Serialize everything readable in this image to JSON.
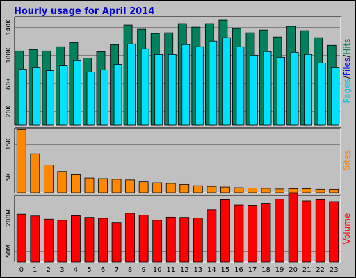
{
  "chart_data": {
    "type": "bar",
    "title": "Hourly usage for April 2014",
    "categories": [
      "0",
      "1",
      "2",
      "3",
      "4",
      "5",
      "6",
      "7",
      "8",
      "9",
      "10",
      "11",
      "12",
      "13",
      "14",
      "15",
      "16",
      "17",
      "18",
      "19",
      "20",
      "21",
      "22",
      "23"
    ],
    "panels": [
      {
        "id": "top",
        "ylabel_parts": [
          "Pages",
          "Files",
          "Hits"
        ],
        "ylabel_colors": [
          "#00c8e8",
          "#0000ff",
          "#008060"
        ],
        "ylim": [
          0,
          155000
        ],
        "yticks": [
          20000,
          60000,
          100000,
          140000
        ],
        "ytick_labels": [
          "20K",
          "60K",
          "100K",
          "140K"
        ],
        "series": [
          {
            "name": "Hits",
            "color": "#00805c",
            "values": [
              106000,
              108000,
              106000,
              112000,
              118000,
              96000,
              105000,
              115000,
              143000,
              137000,
              131000,
              132000,
              145000,
              140000,
              145000,
              150000,
              138000,
              132000,
              136000,
              126000,
              141000,
              135000,
              125000,
              114000
            ]
          },
          {
            "name": "Files",
            "color": "#0000ff",
            "values": [
              4000,
              4000,
              4000,
              4000,
              4000,
              4000,
              4000,
              4000,
              4000,
              4000,
              4000,
              4000,
              4000,
              4000,
              4000,
              4000,
              4000,
              4000,
              4000,
              4000,
              4000,
              4000,
              4000,
              4000
            ]
          },
          {
            "name": "Pages",
            "color": "#00e0ff",
            "values": [
              80000,
              82000,
              78000,
              85000,
              92000,
              76000,
              79000,
              87000,
              116000,
              109000,
              101000,
              101000,
              115000,
              112000,
              120000,
              125000,
              112000,
              100000,
              105000,
              97000,
              104000,
              101000,
              89000,
              82000
            ]
          }
        ]
      },
      {
        "id": "middle",
        "ylabel_parts": [
          "Sites"
        ],
        "ylabel_colors": [
          "#ff8000"
        ],
        "ylim": [
          0,
          20000
        ],
        "yticks": [
          5000,
          15000
        ],
        "ytick_labels": [
          "5K",
          "15K"
        ],
        "series": [
          {
            "name": "Sites",
            "color": "#ff8800",
            "values": [
              19500,
              12000,
              8500,
              6500,
              5500,
              4500,
              4300,
              4100,
              3900,
              3300,
              3000,
              2800,
              2500,
              2100,
              1900,
              1700,
              1500,
              1400,
              1300,
              1100,
              1200,
              1200,
              1000,
              1000
            ]
          }
        ]
      },
      {
        "id": "bottom",
        "ylabel_parts": [
          "Volume"
        ],
        "ylabel_colors": [
          "#ff0000"
        ],
        "ylim": [
          0,
          300
        ],
        "yticks": [
          50,
          200
        ],
        "ytick_labels": [
          "50M",
          "200M"
        ],
        "series": [
          {
            "name": "Volume",
            "color": "#ff0000",
            "values": [
              215,
              207,
              193,
              188,
              208,
              201,
              197,
              176,
              219,
              211,
              188,
              202,
              201,
              198,
              235,
              280,
              256,
              255,
              264,
              282,
              310,
              275,
              280,
              272
            ]
          }
        ]
      }
    ]
  }
}
